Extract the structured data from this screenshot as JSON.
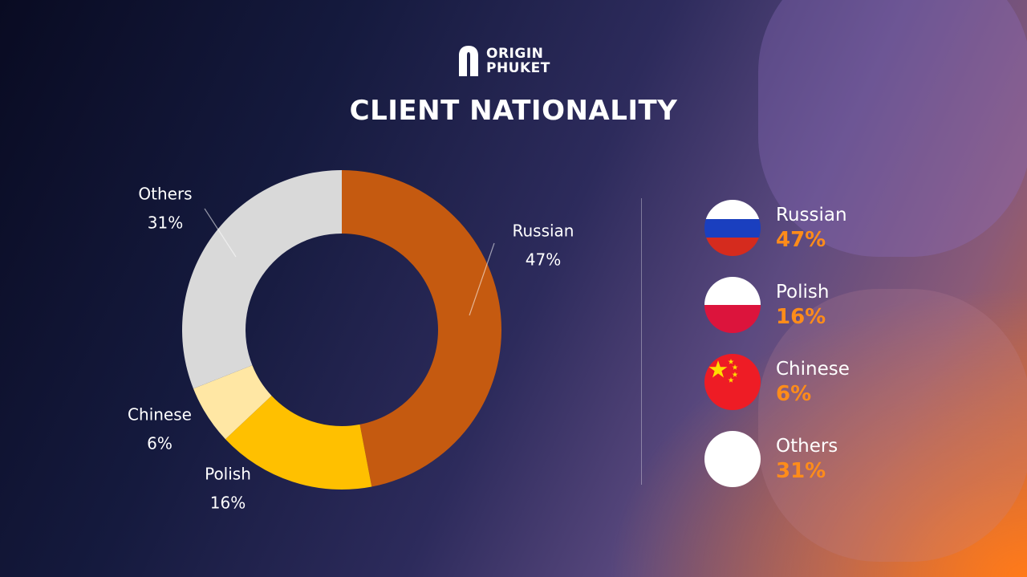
{
  "brand": {
    "line1": "ORIGIN",
    "line2": "PHUKET"
  },
  "title": "CLIENT NATIONALITY",
  "chart_data": {
    "type": "pie",
    "variant": "donut",
    "title": "CLIENT NATIONALITY",
    "slices": [
      {
        "name": "Russian",
        "value": 47,
        "label": "47%",
        "color": "#c55a10"
      },
      {
        "name": "Polish",
        "value": 16,
        "label": "16%",
        "color": "#ffc000"
      },
      {
        "name": "Chinese",
        "value": 6,
        "label": "6%",
        "color": "#ffe7a4"
      },
      {
        "name": "Others",
        "value": 31,
        "label": "31%",
        "color": "#d9d9d9"
      }
    ]
  },
  "legend": [
    {
      "name": "Russian",
      "pct": "47%",
      "flag": "russia-flag-icon"
    },
    {
      "name": "Polish",
      "pct": "16%",
      "flag": "poland-flag-icon"
    },
    {
      "name": "Chinese",
      "pct": "6%",
      "flag": "china-flag-icon"
    },
    {
      "name": "Others",
      "pct": "31%",
      "flag": "blank-white-circle-icon"
    }
  ]
}
